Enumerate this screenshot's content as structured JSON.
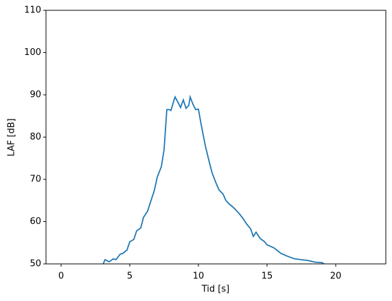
{
  "chart_data": {
    "type": "line",
    "x_label": "Tid [s]",
    "y_label": "LAF [dB]",
    "x": [
      3.0,
      3.2,
      3.5,
      3.8,
      4.0,
      4.3,
      4.5,
      4.8,
      5.0,
      5.3,
      5.5,
      5.8,
      6.0,
      6.3,
      6.5,
      6.8,
      7.0,
      7.3,
      7.5,
      7.7,
      7.9,
      8.0,
      8.2,
      8.3,
      8.5,
      8.7,
      8.9,
      9.1,
      9.3,
      9.4,
      9.6,
      9.8,
      10.0,
      10.2,
      10.5,
      10.8,
      11.0,
      11.3,
      11.5,
      11.8,
      12.0,
      12.3,
      12.5,
      12.8,
      13.0,
      13.3,
      13.5,
      13.8,
      14.0,
      14.2,
      14.5,
      14.8,
      15.0,
      15.5,
      16.0,
      16.5,
      17.0,
      17.5,
      18.0,
      18.5,
      19.0,
      19.4
    ],
    "series": [
      {
        "color": "#1f77b4",
        "values": [
          49.5,
          51,
          50.5,
          51.2,
          51,
          52.3,
          52.5,
          53.3,
          55.2,
          55.8,
          57.8,
          58.5,
          61,
          62.5,
          64.5,
          67.5,
          70.5,
          73,
          77,
          86.5,
          86.5,
          86.3,
          88.5,
          89.5,
          88.3,
          87,
          88.8,
          86.8,
          87.5,
          89.5,
          87.8,
          86.5,
          86.6,
          83,
          78,
          74,
          71.5,
          69,
          67.5,
          66.5,
          65,
          64,
          63.5,
          62.5,
          61.8,
          60.5,
          59.5,
          58.3,
          56.5,
          57.5,
          56,
          55.3,
          54.5,
          53.8,
          52.5,
          51.8,
          51.2,
          51,
          50.8,
          50.4,
          50.3,
          49.5
        ]
      }
    ],
    "xlim": [
      -1.1,
      23.65
    ],
    "xticks": [
      0,
      5,
      10,
      15,
      20
    ],
    "ylim": [
      50,
      110
    ],
    "yticks": [
      50,
      60,
      70,
      80,
      90,
      100,
      110
    ]
  }
}
